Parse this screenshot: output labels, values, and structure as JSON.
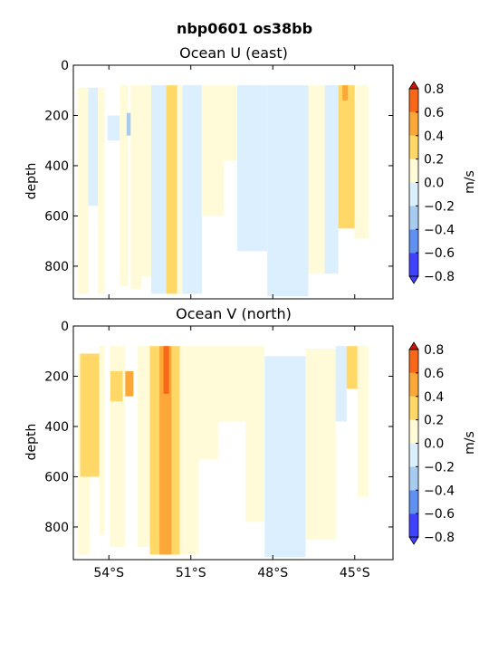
{
  "figure": {
    "suptitle": "nbp0601 os38bb"
  },
  "colorbar": {
    "label": "m/s",
    "levels": [
      -0.8,
      -0.6,
      -0.4,
      -0.2,
      0.0,
      0.2,
      0.4,
      0.6,
      0.8
    ],
    "tick_labels": [
      "−0.8",
      "−0.6",
      "−0.4",
      "−0.2",
      "0.0",
      "0.2",
      "0.4",
      "0.6",
      "0.8"
    ],
    "colors": [
      "#4040ff",
      "#6090f0",
      "#a8ccf0",
      "#dcefff",
      "#fffbd8",
      "#ffd868",
      "#fca838",
      "#f86818",
      "#cc1800"
    ]
  },
  "chart_data": [
    {
      "type": "heatmap",
      "title": "Ocean U (east)",
      "ylabel": "depth",
      "xlim": [
        -55.3,
        -43.6
      ],
      "ylim": [
        930,
        0
      ],
      "yticks": [
        0,
        200,
        400,
        600,
        800
      ],
      "xticks": [
        -54,
        -51,
        -48,
        -45
      ],
      "xtick_labels": [
        "54°S",
        "51°S",
        "48°S",
        "45°S"
      ],
      "show_xtick_labels": false,
      "bands": [
        {
          "x0": -55.15,
          "x1": -54.75,
          "d0": 90,
          "d1": 910,
          "v": 0.1
        },
        {
          "x0": -54.75,
          "x1": -54.4,
          "d0": 90,
          "d1": 560,
          "v": -0.1
        },
        {
          "x0": -54.4,
          "x1": -54.15,
          "d0": 90,
          "d1": 910,
          "v": 0.1
        },
        {
          "x0": -54.05,
          "x1": -53.6,
          "d0": 200,
          "d1": 300,
          "v": -0.1
        },
        {
          "x0": -53.6,
          "x1": -53.3,
          "d0": 80,
          "d1": 880,
          "v": 0.1
        },
        {
          "x0": -53.35,
          "x1": -53.2,
          "d0": 190,
          "d1": 280,
          "v": -0.3
        },
        {
          "x0": -53.2,
          "x1": -52.8,
          "d0": 80,
          "d1": 890,
          "v": 0.1
        },
        {
          "x0": -52.8,
          "x1": -52.45,
          "d0": 80,
          "d1": 840,
          "v": 0.1
        },
        {
          "x0": -52.45,
          "x1": -51.9,
          "d0": 80,
          "d1": 910,
          "v": -0.1
        },
        {
          "x0": -51.9,
          "x1": -51.5,
          "d0": 80,
          "d1": 910,
          "v": 0.3
        },
        {
          "x0": -51.5,
          "x1": -51.3,
          "d0": 80,
          "d1": 910,
          "v": 0.1
        },
        {
          "x0": -51.3,
          "x1": -50.6,
          "d0": 80,
          "d1": 910,
          "v": -0.1
        },
        {
          "x0": -50.6,
          "x1": -49.8,
          "d0": 80,
          "d1": 600,
          "v": 0.1
        },
        {
          "x0": -49.8,
          "x1": -49.3,
          "d0": 80,
          "d1": 380,
          "v": 0.1
        },
        {
          "x0": -49.3,
          "x1": -48.2,
          "d0": 80,
          "d1": 740,
          "v": -0.1
        },
        {
          "x0": -48.2,
          "x1": -46.7,
          "d0": 80,
          "d1": 920,
          "v": -0.1
        },
        {
          "x0": -46.7,
          "x1": -46.1,
          "d0": 80,
          "d1": 830,
          "v": 0.1
        },
        {
          "x0": -46.1,
          "x1": -45.6,
          "d0": 80,
          "d1": 830,
          "v": -0.1
        },
        {
          "x0": -45.6,
          "x1": -45.0,
          "d0": 80,
          "d1": 650,
          "v": 0.3
        },
        {
          "x0": -45.45,
          "x1": -45.25,
          "d0": 80,
          "d1": 140,
          "v": 0.5
        },
        {
          "x0": -45.0,
          "x1": -44.5,
          "d0": 80,
          "d1": 690,
          "v": 0.1
        }
      ]
    },
    {
      "type": "heatmap",
      "title": "Ocean V (north)",
      "ylabel": "depth",
      "xlim": [
        -55.3,
        -43.6
      ],
      "ylim": [
        930,
        0
      ],
      "yticks": [
        0,
        200,
        400,
        600,
        800
      ],
      "xticks": [
        -54,
        -51,
        -48,
        -45
      ],
      "xtick_labels": [
        "54°S",
        "51°S",
        "48°S",
        "45°S"
      ],
      "show_xtick_labels": true,
      "bands": [
        {
          "x0": -55.15,
          "x1": -54.7,
          "d0": 110,
          "d1": 910,
          "v": 0.1
        },
        {
          "x0": -55.05,
          "x1": -54.35,
          "d0": 110,
          "d1": 600,
          "v": 0.3
        },
        {
          "x0": -54.35,
          "x1": -54.15,
          "d0": 80,
          "d1": 830,
          "v": 0.1
        },
        {
          "x0": -53.95,
          "x1": -53.4,
          "d0": 80,
          "d1": 880,
          "v": 0.1
        },
        {
          "x0": -53.95,
          "x1": -53.5,
          "d0": 180,
          "d1": 300,
          "v": 0.3
        },
        {
          "x0": -53.4,
          "x1": -53.1,
          "d0": 180,
          "d1": 280,
          "v": 0.5
        },
        {
          "x0": -52.95,
          "x1": -52.45,
          "d0": 80,
          "d1": 880,
          "v": 0.1
        },
        {
          "x0": -52.5,
          "x1": -52.15,
          "d0": 80,
          "d1": 910,
          "v": 0.3
        },
        {
          "x0": -52.15,
          "x1": -51.7,
          "d0": 80,
          "d1": 910,
          "v": 0.5
        },
        {
          "x0": -52.0,
          "x1": -51.8,
          "d0": 80,
          "d1": 270,
          "v": 0.7
        },
        {
          "x0": -51.7,
          "x1": -51.4,
          "d0": 80,
          "d1": 910,
          "v": 0.3
        },
        {
          "x0": -51.4,
          "x1": -50.7,
          "d0": 80,
          "d1": 910,
          "v": 0.1
        },
        {
          "x0": -50.7,
          "x1": -50.0,
          "d0": 80,
          "d1": 530,
          "v": 0.1
        },
        {
          "x0": -50.0,
          "x1": -49.0,
          "d0": 80,
          "d1": 380,
          "v": 0.1
        },
        {
          "x0": -49.0,
          "x1": -48.3,
          "d0": 80,
          "d1": 780,
          "v": 0.1
        },
        {
          "x0": -48.3,
          "x1": -46.8,
          "d0": 120,
          "d1": 920,
          "v": -0.1
        },
        {
          "x0": -46.8,
          "x1": -45.7,
          "d0": 90,
          "d1": 850,
          "v": 0.1
        },
        {
          "x0": -45.7,
          "x1": -45.3,
          "d0": 80,
          "d1": 380,
          "v": -0.1
        },
        {
          "x0": -45.3,
          "x1": -44.9,
          "d0": 80,
          "d1": 250,
          "v": 0.3
        },
        {
          "x0": -44.9,
          "x1": -44.5,
          "d0": 80,
          "d1": 680,
          "v": 0.1
        }
      ]
    }
  ]
}
